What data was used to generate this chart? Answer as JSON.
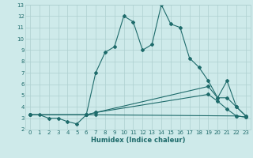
{
  "xlabel": "Humidex (Indice chaleur)",
  "xlim": [
    -0.5,
    23.5
  ],
  "ylim": [
    2,
    13
  ],
  "xticks": [
    0,
    1,
    2,
    3,
    4,
    5,
    6,
    7,
    8,
    9,
    10,
    11,
    12,
    13,
    14,
    15,
    16,
    17,
    18,
    19,
    20,
    21,
    22,
    23
  ],
  "yticks": [
    2,
    3,
    4,
    5,
    6,
    7,
    8,
    9,
    10,
    11,
    12,
    13
  ],
  "bg_color": "#ceeaea",
  "line_color": "#1e6b6b",
  "grid_color": "#aed0d0",
  "lines": [
    {
      "x": [
        0,
        1,
        2,
        3,
        4,
        5,
        6,
        7,
        8,
        9,
        10,
        11,
        12,
        13,
        14,
        15,
        16,
        17,
        18,
        19,
        20,
        21,
        22,
        23
      ],
      "y": [
        3.3,
        3.3,
        3.0,
        3.0,
        2.7,
        2.5,
        3.3,
        7.0,
        8.8,
        9.3,
        12.0,
        11.5,
        9.0,
        9.5,
        13.0,
        11.3,
        11.0,
        8.3,
        7.5,
        6.3,
        4.8,
        6.3,
        4.0,
        3.2
      ]
    },
    {
      "x": [
        0,
        6,
        7,
        19,
        20,
        21,
        22,
        23
      ],
      "y": [
        3.3,
        3.3,
        3.5,
        5.8,
        4.8,
        4.8,
        4.0,
        3.2
      ]
    },
    {
      "x": [
        0,
        6,
        7,
        19,
        20,
        21,
        22,
        23
      ],
      "y": [
        3.3,
        3.3,
        3.5,
        5.1,
        4.5,
        3.8,
        3.2,
        3.1
      ]
    },
    {
      "x": [
        0,
        6,
        7,
        22,
        23
      ],
      "y": [
        3.3,
        3.3,
        3.3,
        3.2,
        3.1
      ]
    }
  ]
}
